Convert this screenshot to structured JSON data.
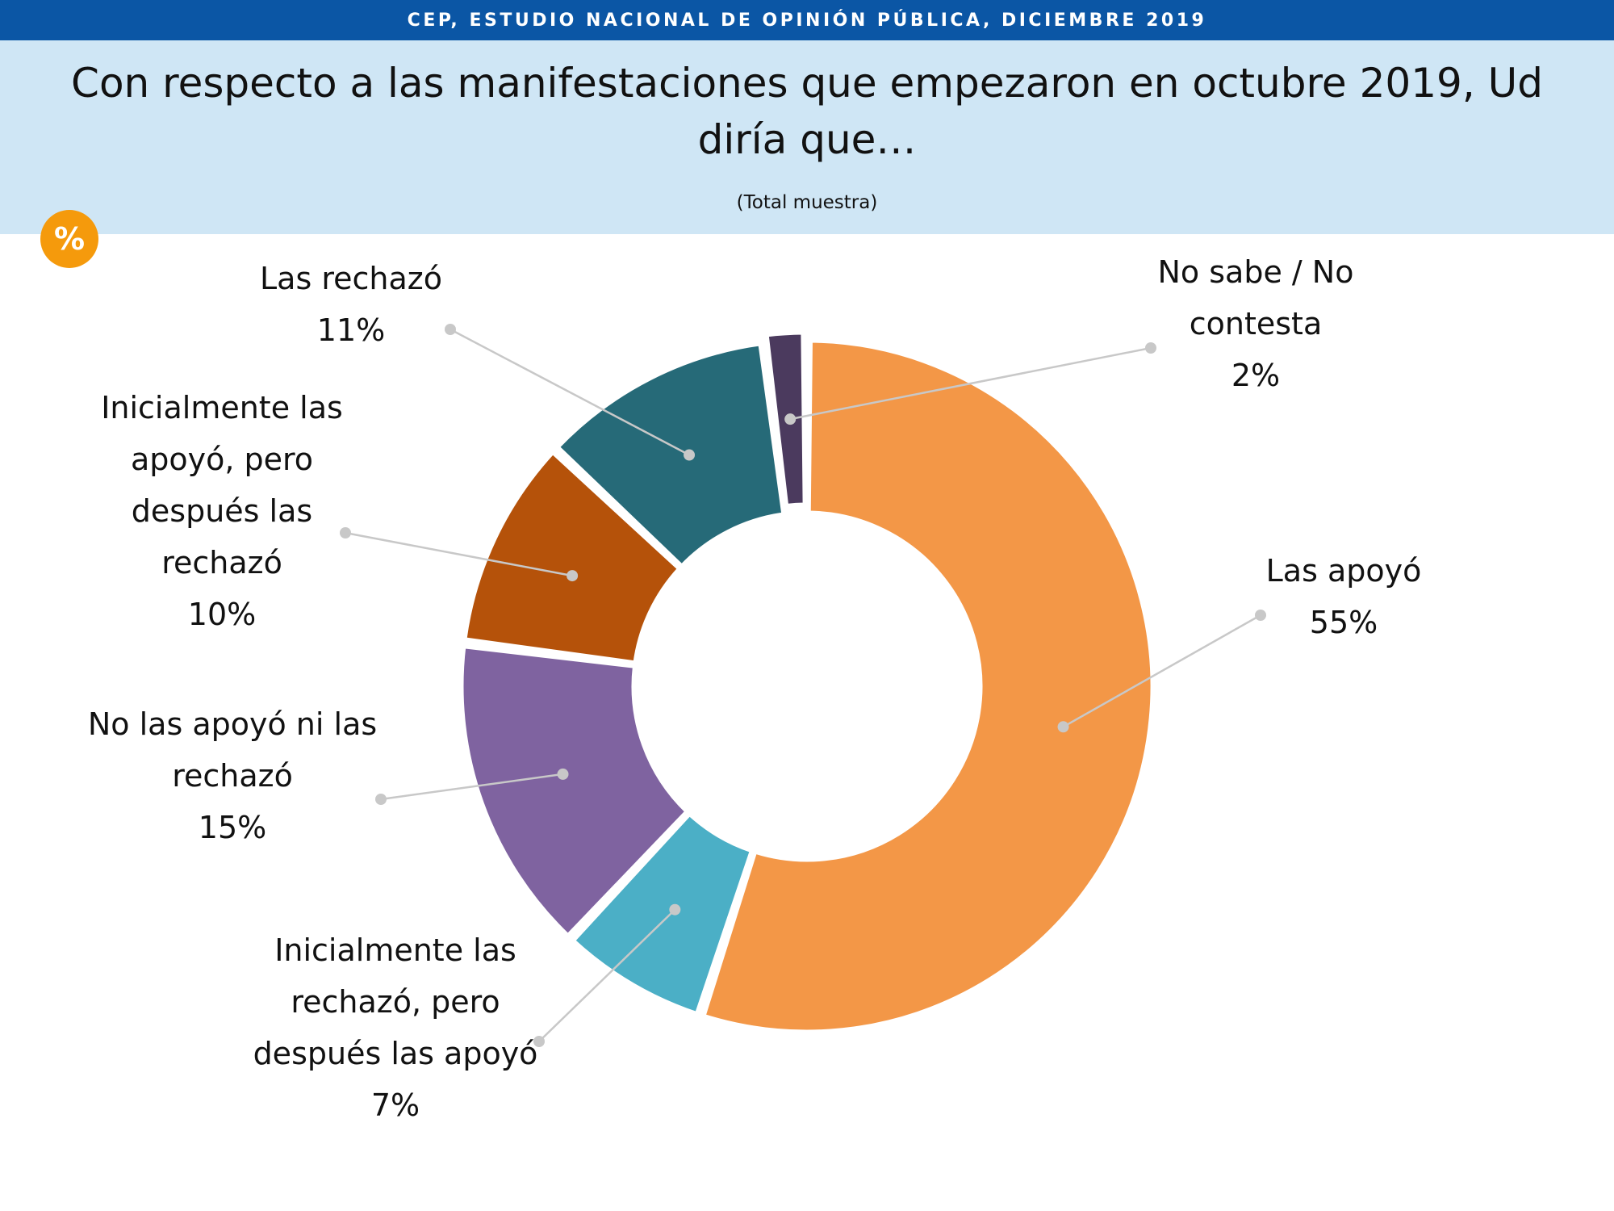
{
  "header": {
    "source": "CEP, ESTUDIO NACIONAL DE OPINIÓN PÚBLICA, DICIEMBRE 2019",
    "question": "Con respecto a las manifestaciones que empezaron en octubre 2019, Ud diría que…",
    "subtitle": "(Total muestra)",
    "badge": "%"
  },
  "chart_data": {
    "type": "pie",
    "subtype": "donut",
    "unit": "%",
    "slices": [
      {
        "label": "Las apoyó",
        "value": 55,
        "value_label": "55%",
        "color": "#f39747"
      },
      {
        "label": "Inicialmente las rechazó, pero después las apoyó",
        "value": 7,
        "value_label": "7%",
        "color": "#4bafc6"
      },
      {
        "label": "No las apoyó ni las rechazó",
        "value": 15,
        "value_label": "15%",
        "color": "#7f63a0"
      },
      {
        "label": "Inicialmente las apoyó, pero después las rechazó",
        "value": 10,
        "value_label": "10%",
        "color": "#b5520a"
      },
      {
        "label": "Las rechazó",
        "value": 11,
        "value_label": "11%",
        "color": "#266a78"
      },
      {
        "label": "No sabe / No contesta",
        "value": 2,
        "value_label": "2%",
        "color": "#4b3a5e"
      }
    ]
  }
}
